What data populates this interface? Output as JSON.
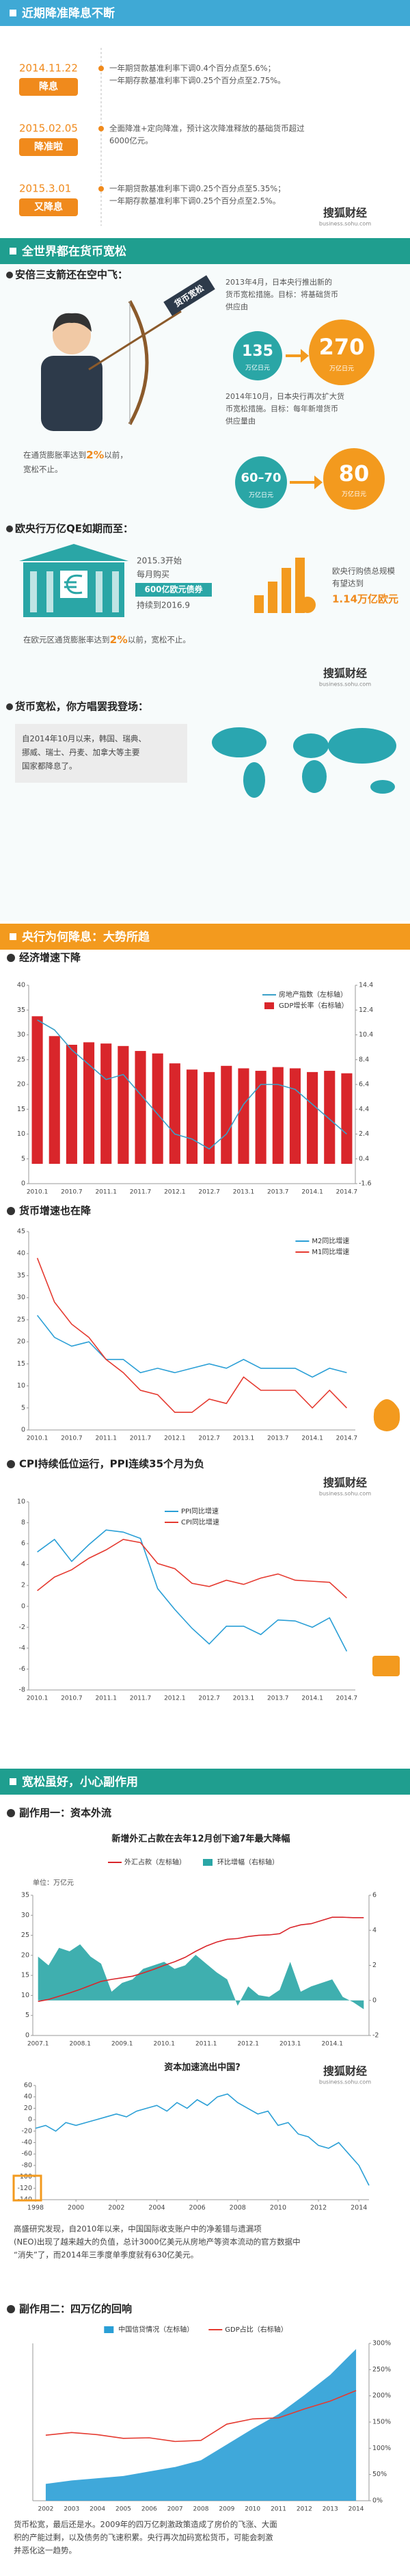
{
  "header_sections": [
    "近期降准降息不断",
    "全世界都在货币宽松",
    "央行为何降息：大势所趋",
    "宽松虽好，小心副作用"
  ],
  "timeline": [
    {
      "date": "2014.11.22",
      "tag": "降息",
      "lines": [
        "一年期贷款基准利率下调0.4个百分点至5.6%；",
        "一年期存款基准利率下调0.25个百分点至2.75%。"
      ]
    },
    {
      "date": "2015.02.05",
      "tag": "降准啦",
      "lines": [
        "全面降准+定向降准，预计这次降准释放的基础货币超过",
        "6000亿元。"
      ]
    },
    {
      "date": "2015.3.01",
      "tag": "又降息",
      "lines": [
        "一年期贷款基准利率下调0.25个百分点至5.35%；",
        "一年期存款基准利率下调0.25个百分点至2.5%。"
      ]
    }
  ],
  "logo": {
    "name": "搜狐财经",
    "url": "business.sohu.com"
  },
  "japan": {
    "heading": "安倍三支箭还在空中飞：",
    "arrow_label": "货币宽松",
    "step1": [
      "2013年4月，日本央行推出新的",
      "货币宽松措施。目标：将基础货币",
      "供应由"
    ],
    "from1": "135",
    "to1": "270",
    "unit": "万亿日元",
    "step2": [
      "2014年10月，日本央行再次扩大货",
      "币宽松措施。目标：每年新增货币",
      "供应量由"
    ],
    "from2": "60–70",
    "to2": "80",
    "note": [
      [
        "在通货膨胀率达到",
        "2%",
        "以前，"
      ],
      [
        "宽松不止。"
      ]
    ]
  },
  "europe": {
    "heading": "欧央行万亿QE如期而至：",
    "plan": [
      "2015.3开始",
      "每月购买",
      "600亿欧元债券",
      "持续到2016.9"
    ],
    "total": [
      "欧央行购债总规模",
      "有望达到"
    ],
    "total_value": "1.14万亿欧元",
    "note": [
      "在欧元区通货膨胀率达到",
      "2%",
      "以前，宽松不止。"
    ]
  },
  "world": {
    "heading": "货币宽松，你方唱罢我登场：",
    "text": [
      "自2014年10月以来，韩国、瑞典、",
      "挪威、瑞士、丹麦、加拿大等主要",
      "国家都降息了。"
    ]
  },
  "subheads": [
    "经济增速下降",
    "货币增速也在降",
    "CPI持续低位运行，PPI连续35个月为负",
    "副作用一：资本外流",
    "副作用二：四万亿的回响"
  ],
  "paragraphs": [
    [
      "高盛研究发现，自2010年以来，中国国际收支账户中的净差错与遗漏项",
      "(NEO)出现了越来越大的负值，总计3000亿美元从房地产等资本流动的官方数据中",
      "“消失”了，而2014年三季度单季度就有630亿美元。"
    ],
    [
      "货币松宽，最后还是水。2009年的四万亿刺激政策造成了房价的飞涨、大面",
      "积的产能过剩，以及债务的飞速积累。央行再次加码宽松货币，可能会刺激",
      "并恶化这一趋势。"
    ]
  ],
  "chart_data": [
    {
      "type": "combo",
      "legend": "top-right",
      "categories": [
        "2010.1",
        null,
        "2010.7",
        null,
        "2011.1",
        null,
        "2011.7",
        null,
        "2012.1",
        null,
        "2012.7",
        null,
        "2013.1",
        null,
        "2013.7",
        null,
        "2014.1",
        null,
        "2014.7"
      ],
      "series": [
        {
          "name": "房地产指数（左标轴）",
          "type": "line",
          "color": "#3aa0c8",
          "values": [
            33,
            31,
            27,
            24,
            21,
            22,
            18,
            14,
            10,
            9,
            7,
            10,
            16,
            20,
            20,
            19,
            16,
            13,
            10
          ]
        },
        {
          "name": "GDP增长率（右标轴）",
          "type": "bar",
          "axis": "y2",
          "color": "#d9262b",
          "values": [
            11.9,
            10.3,
            9.6,
            9.8,
            9.7,
            9.5,
            9.1,
            8.9,
            8.1,
            7.6,
            7.4,
            7.9,
            7.7,
            7.5,
            7.8,
            7.7,
            7.4,
            7.5,
            7.3
          ]
        }
      ],
      "ylim": [
        0,
        40
      ],
      "yticks": [
        0,
        5,
        10,
        15,
        20,
        25,
        30,
        35,
        40
      ],
      "y2lim": [
        -1.6,
        14.4
      ],
      "y2ticks": [
        -1.6,
        0.4,
        2.4,
        4.4,
        6.4,
        8.4,
        10.4,
        12.4,
        14.4
      ],
      "grid": false
    },
    {
      "type": "line",
      "legend": "top-right",
      "categories": [
        "2010.1",
        null,
        "2010.7",
        null,
        "2011.1",
        null,
        "2011.7",
        null,
        "2012.1",
        null,
        "2012.7",
        null,
        "2013.1",
        null,
        "2013.7",
        null,
        "2014.1",
        null,
        "2014.7"
      ],
      "series": [
        {
          "name": "M2同比增速",
          "color": "#2a9fd6",
          "values": [
            26,
            21,
            19,
            20,
            16,
            16,
            13,
            14,
            13,
            14,
            15,
            14,
            16,
            14,
            14,
            14,
            12,
            14,
            13
          ]
        },
        {
          "name": "M1同比增速",
          "color": "#e53a30",
          "values": [
            39,
            29,
            24,
            21,
            16,
            13,
            9,
            8,
            4,
            4,
            7,
            6,
            12,
            9,
            9,
            9,
            5,
            9,
            5
          ]
        }
      ],
      "ylim": [
        0,
        45
      ],
      "yticks": [
        0,
        5,
        10,
        15,
        20,
        25,
        30,
        35,
        40,
        45
      ],
      "grid": false
    },
    {
      "type": "line",
      "legend": "top-center",
      "categories": [
        "2010.1",
        null,
        "2010.7",
        null,
        "2011.1",
        null,
        "2011.7",
        null,
        "2012.1",
        null,
        "2012.7",
        null,
        "2013.1",
        null,
        "2013.7",
        null,
        "2014.1",
        null,
        "2014.7"
      ],
      "series": [
        {
          "name": "PPI同比增速",
          "color": "#2a9fd6",
          "values": [
            5.2,
            6.4,
            4.3,
            5.9,
            7.3,
            7.1,
            6.5,
            1.7,
            -0.3,
            -2.1,
            -3.6,
            -1.9,
            -1.9,
            -2.7,
            -1.3,
            -1.4,
            -2.0,
            -1.1,
            -4.3
          ]
        },
        {
          "name": "CPI同比增速",
          "color": "#e53a30",
          "values": [
            1.5,
            2.8,
            3.5,
            4.6,
            5.4,
            6.4,
            6.1,
            4.1,
            3.6,
            2.2,
            1.9,
            2.5,
            2.1,
            2.7,
            3.1,
            2.5,
            2.4,
            2.3,
            0.8
          ]
        }
      ],
      "ylim": [
        -8,
        10
      ],
      "yticks": [
        -8,
        -6,
        -4,
        -2,
        0,
        2,
        4,
        6,
        8,
        10
      ],
      "grid": false
    },
    {
      "type": "combo",
      "legend": "above",
      "title": "新增外汇占款在去年12月创下逾7年最大降幅",
      "unit_label": "单位：万亿元",
      "categories": [
        "2007.1",
        null,
        null,
        null,
        "2008.1",
        null,
        null,
        null,
        "2009.1",
        null,
        null,
        null,
        "2010.1",
        null,
        null,
        null,
        "2011.1",
        null,
        null,
        null,
        "2012.1",
        null,
        null,
        null,
        "2013.1",
        null,
        null,
        null,
        "2014.1",
        null,
        null,
        null
      ],
      "series": [
        {
          "name": "外汇占款（左标轴）",
          "type": "line",
          "color": "#d9262b",
          "values": [
            8.5,
            9.0,
            9.8,
            10.6,
            11.5,
            12.5,
            13.5,
            14.0,
            14.4,
            14.8,
            15.6,
            16.5,
            17.5,
            18.4,
            19.5,
            21.0,
            22.3,
            23.3,
            24.0,
            24.2,
            24.7,
            25.0,
            25.1,
            25.4,
            26.9,
            27.6,
            27.9,
            28.7,
            29.5,
            29.5,
            29.4,
            29.4
          ]
        },
        {
          "name": "环比增幅（右标轴）",
          "type": "area",
          "axis": "y2",
          "color": "#2aa6a6",
          "values": [
            2.5,
            2.0,
            3.0,
            2.8,
            3.2,
            2.5,
            2.1,
            0.5,
            1.0,
            1.2,
            1.8,
            2.0,
            2.2,
            1.8,
            2.0,
            2.6,
            2.1,
            1.6,
            1.2,
            -0.3,
            0.8,
            0.3,
            0.2,
            0.6,
            2.2,
            0.5,
            0.8,
            1.0,
            1.2,
            0.2,
            -0.1,
            -0.5
          ]
        }
      ],
      "ylim": [
        0,
        35
      ],
      "yticks": [
        0,
        5,
        10,
        15,
        20,
        25,
        30,
        35
      ],
      "y2lim": [
        -2,
        6
      ],
      "y2ticks": [
        -2,
        0,
        2,
        4,
        6
      ],
      "grid": false
    },
    {
      "type": "line",
      "title": "资本加速流出中国?",
      "x": [
        1998,
        1998.5,
        1999,
        1999.5,
        2000,
        2000.5,
        2001,
        2001.5,
        2002,
        2002.5,
        2003,
        2003.5,
        2004,
        2004.5,
        2005,
        2005.5,
        2006,
        2006.5,
        2007,
        2007.5,
        2008,
        2008.5,
        2009,
        2009.5,
        2010,
        2010.5,
        2011,
        2011.5,
        2012,
        2012.5,
        2013,
        2013.5,
        2014,
        2014.5
      ],
      "series": [
        {
          "color": "#2a9fd6",
          "values": [
            -15,
            -10,
            -20,
            -5,
            -10,
            -5,
            0,
            5,
            10,
            5,
            15,
            20,
            25,
            15,
            30,
            20,
            35,
            25,
            40,
            45,
            30,
            20,
            10,
            15,
            -10,
            -5,
            -25,
            -30,
            -45,
            -50,
            -40,
            -60,
            -80,
            -115
          ]
        }
      ],
      "xlim": [
        1998,
        2014.5
      ],
      "xticks": [
        1998,
        2000,
        2002,
        2004,
        2006,
        2008,
        2010,
        2012,
        2014
      ],
      "ylim": [
        -140,
        60
      ],
      "yticks": [
        -140,
        -120,
        -100,
        -80,
        -60,
        -40,
        -20,
        0,
        20,
        40,
        60
      ],
      "grid": false
    },
    {
      "type": "combo",
      "legend": "above",
      "categories": [
        "2002",
        "2003",
        "2004",
        "2005",
        "2006",
        "2007",
        "2008",
        "2009",
        "2010",
        "2011",
        "2012",
        "2013",
        "2014"
      ],
      "series": [
        {
          "name": "中国信贷情况（左标轴）",
          "type": "area",
          "color": "#2a9fd6",
          "values": [
            15,
            18,
            20,
            22,
            26,
            30,
            36,
            50,
            64,
            77,
            94,
            112,
            135
          ]
        },
        {
          "name": "GDP占比（右标轴）",
          "type": "line",
          "axis": "y2",
          "color": "#e53a30",
          "values": [
            125,
            130,
            126,
            119,
            120,
            113,
            115,
            146,
            156,
            158,
            175,
            190,
            210
          ]
        }
      ],
      "ylim": [
        0,
        140
      ],
      "y2lim": [
        0,
        300
      ],
      "y2ticks": [
        {
          "value": 0,
          "label": "0%"
        },
        {
          "value": 50,
          "label": "50%"
        },
        {
          "value": 100,
          "label": "100%"
        },
        {
          "value": 150,
          "label": "150%"
        },
        {
          "value": 200,
          "label": "200%"
        },
        {
          "value": 250,
          "label": "250%"
        },
        {
          "value": 300,
          "label": "300%"
        }
      ],
      "grid": false
    }
  ]
}
